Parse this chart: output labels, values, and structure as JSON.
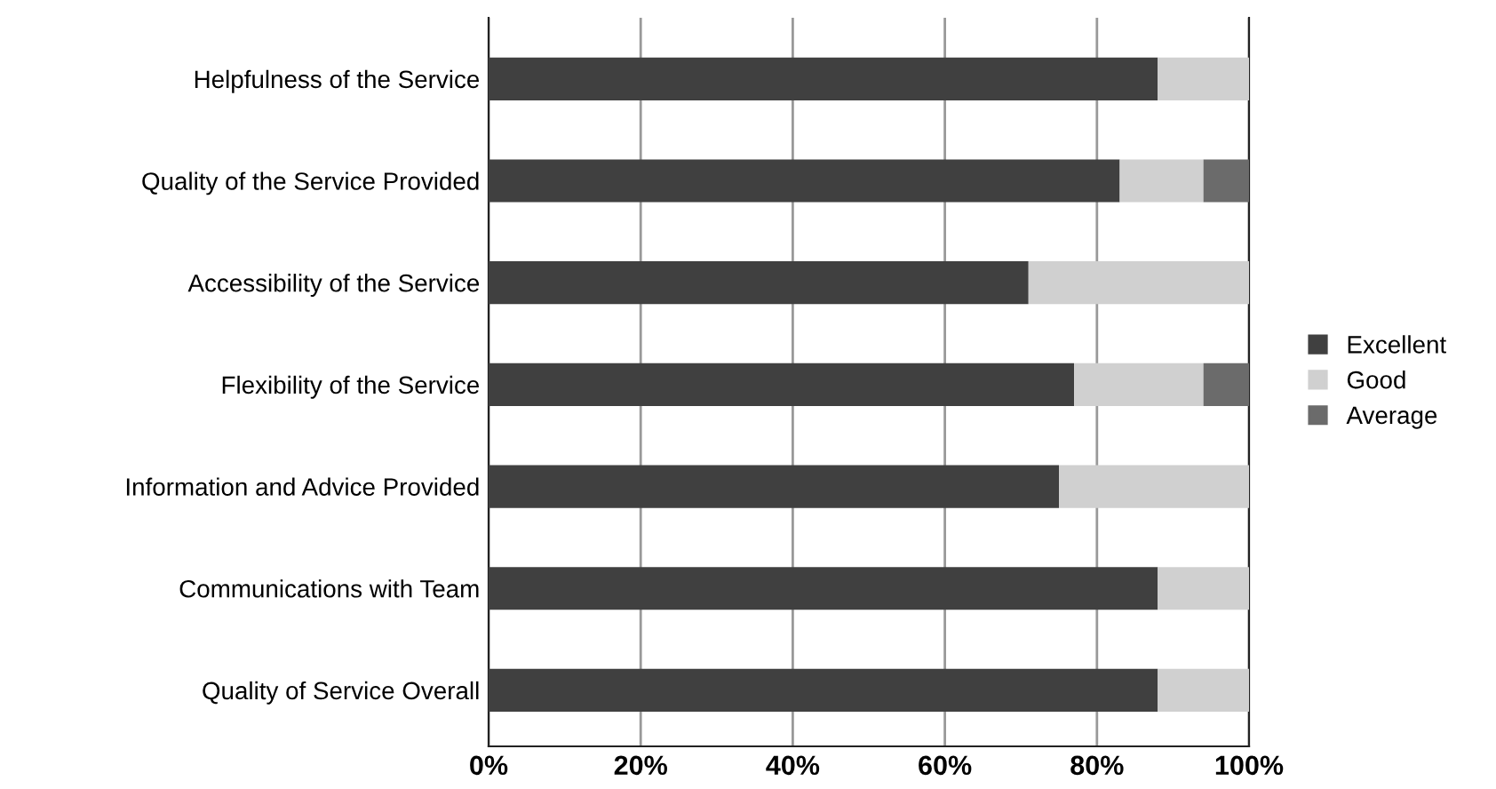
{
  "chart_data": {
    "type": "bar",
    "orientation": "horizontal",
    "stacked": true,
    "categories": [
      "Helpfulness of the Service",
      "Quality of the Service Provided",
      "Accessibility of the Service",
      "Flexibility of the Service",
      "Information and Advice Provided",
      "Communications with Team",
      "Quality of Service Overall"
    ],
    "series": [
      {
        "name": "Excellent",
        "color": "#404040",
        "values": [
          88,
          83,
          71,
          77,
          75,
          88,
          88
        ]
      },
      {
        "name": "Good",
        "color": "#d0d0d0",
        "values": [
          12,
          11,
          29,
          17,
          25,
          12,
          12
        ]
      },
      {
        "name": "Average",
        "color": "#6b6b6b",
        "values": [
          0,
          6,
          0,
          6,
          0,
          0,
          0
        ]
      }
    ],
    "xlim": [
      0,
      100
    ],
    "xticks": [
      {
        "value": 0,
        "label": "0%"
      },
      {
        "value": 20,
        "label": "20%"
      },
      {
        "value": 40,
        "label": "40%"
      },
      {
        "value": 60,
        "label": "60%"
      },
      {
        "value": 80,
        "label": "80%"
      },
      {
        "value": 100,
        "label": "100%"
      }
    ],
    "grid": "x",
    "legend": "right"
  }
}
